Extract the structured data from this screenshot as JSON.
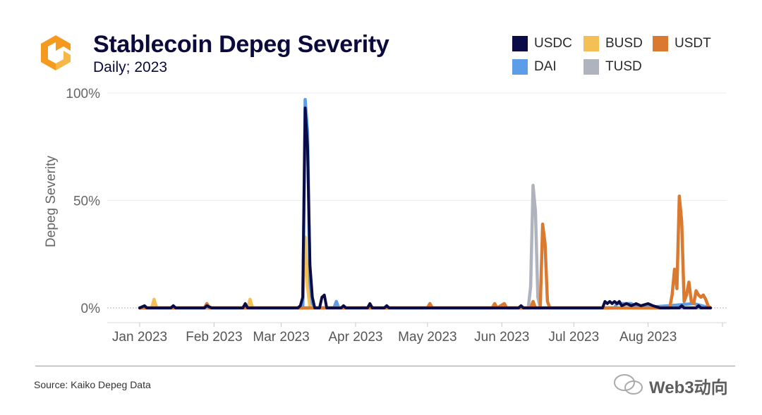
{
  "header": {
    "title": "Stablecoin Depeg Severity",
    "subtitle": "Daily; 2023"
  },
  "legend": [
    {
      "label": "USDC",
      "color": "#0b0c45"
    },
    {
      "label": "BUSD",
      "color": "#f4bf55"
    },
    {
      "label": "USDT",
      "color": "#d97a30"
    },
    {
      "label": "DAI",
      "color": "#5b9de6"
    },
    {
      "label": "TUSD",
      "color": "#aeb3bd"
    }
  ],
  "footer": {
    "source": "Source: Kaiko Depeg Data",
    "watermark": "Web3动向"
  },
  "chart_data": {
    "type": "line",
    "ylabel": "Depeg Severity",
    "xlabel": "",
    "ylim": [
      0,
      100
    ],
    "yticks": [
      "0%",
      "50%",
      "100%"
    ],
    "xticks": [
      "Jan 2023",
      "Feb 2023",
      "Mar 2023",
      "Apr 2023",
      "May 2023",
      "Jun 2023",
      "Jul 2023",
      "Aug 2023"
    ],
    "grid": "horizontal",
    "legend_position": "top-right",
    "series": [
      {
        "name": "BUSD",
        "color": "#f4bf55",
        "points": [
          [
            "2023-01-01",
            0
          ],
          [
            "2023-01-06",
            0
          ],
          [
            "2023-01-07",
            4
          ],
          [
            "2023-01-08",
            0
          ],
          [
            "2023-02-15",
            0
          ],
          [
            "2023-02-16",
            4
          ],
          [
            "2023-02-17",
            0
          ],
          [
            "2023-03-10",
            0
          ],
          [
            "2023-03-11",
            33
          ],
          [
            "2023-03-12",
            10
          ],
          [
            "2023-03-13",
            0
          ],
          [
            "2023-08-27",
            0
          ]
        ]
      },
      {
        "name": "DAI",
        "color": "#5b9de6",
        "points": [
          [
            "2023-01-01",
            0
          ],
          [
            "2023-03-10",
            0
          ],
          [
            "2023-03-11",
            97
          ],
          [
            "2023-03-12",
            82
          ],
          [
            "2023-03-13",
            12
          ],
          [
            "2023-03-14",
            2
          ],
          [
            "2023-03-15",
            0
          ],
          [
            "2023-03-23",
            0
          ],
          [
            "2023-03-24",
            3
          ],
          [
            "2023-03-25",
            0
          ],
          [
            "2023-07-18",
            0
          ],
          [
            "2023-07-19",
            2
          ],
          [
            "2023-07-25",
            2
          ],
          [
            "2023-07-28",
            0
          ],
          [
            "2023-08-10",
            1
          ],
          [
            "2023-08-20",
            2
          ],
          [
            "2023-08-27",
            0
          ]
        ]
      },
      {
        "name": "TUSD",
        "color": "#aeb3bd",
        "points": [
          [
            "2023-01-01",
            0
          ],
          [
            "2023-06-12",
            0
          ],
          [
            "2023-06-13",
            10
          ],
          [
            "2023-06-14",
            57
          ],
          [
            "2023-06-15",
            45
          ],
          [
            "2023-06-16",
            5
          ],
          [
            "2023-06-17",
            0
          ],
          [
            "2023-08-27",
            0
          ]
        ]
      },
      {
        "name": "USDT",
        "color": "#d97a30",
        "points": [
          [
            "2023-01-01",
            0
          ],
          [
            "2023-01-28",
            0
          ],
          [
            "2023-01-29",
            2
          ],
          [
            "2023-01-30",
            0
          ],
          [
            "2023-05-01",
            0
          ],
          [
            "2023-05-02",
            2
          ],
          [
            "2023-05-03",
            0
          ],
          [
            "2023-05-28",
            0
          ],
          [
            "2023-05-29",
            2
          ],
          [
            "2023-05-30",
            0
          ],
          [
            "2023-06-02",
            2
          ],
          [
            "2023-06-03",
            0
          ],
          [
            "2023-06-13",
            0
          ],
          [
            "2023-06-14",
            3
          ],
          [
            "2023-06-15",
            0
          ],
          [
            "2023-06-17",
            0
          ],
          [
            "2023-06-18",
            39
          ],
          [
            "2023-06-19",
            30
          ],
          [
            "2023-06-20",
            3
          ],
          [
            "2023-06-21",
            0
          ],
          [
            "2023-08-10",
            0
          ],
          [
            "2023-08-11",
            6
          ],
          [
            "2023-08-12",
            18
          ],
          [
            "2023-08-13",
            9
          ],
          [
            "2023-08-14",
            52
          ],
          [
            "2023-08-15",
            40
          ],
          [
            "2023-08-16",
            3
          ],
          [
            "2023-08-17",
            6
          ],
          [
            "2023-08-18",
            12
          ],
          [
            "2023-08-19",
            3
          ],
          [
            "2023-08-20",
            2
          ],
          [
            "2023-08-21",
            8
          ],
          [
            "2023-08-22",
            6
          ],
          [
            "2023-08-23",
            5
          ],
          [
            "2023-08-24",
            6
          ],
          [
            "2023-08-25",
            4
          ],
          [
            "2023-08-26",
            1
          ],
          [
            "2023-08-27",
            0
          ]
        ]
      },
      {
        "name": "USDC",
        "color": "#0b0c45",
        "points": [
          [
            "2023-01-01",
            0
          ],
          [
            "2023-01-03",
            1
          ],
          [
            "2023-01-04",
            0
          ],
          [
            "2023-01-14",
            0
          ],
          [
            "2023-01-15",
            1
          ],
          [
            "2023-01-16",
            0
          ],
          [
            "2023-01-28",
            0
          ],
          [
            "2023-01-29",
            1
          ],
          [
            "2023-01-31",
            0
          ],
          [
            "2023-02-13",
            0
          ],
          [
            "2023-02-14",
            2
          ],
          [
            "2023-02-15",
            0
          ],
          [
            "2023-03-08",
            0
          ],
          [
            "2023-03-09",
            1
          ],
          [
            "2023-03-10",
            5
          ],
          [
            "2023-03-11",
            93
          ],
          [
            "2023-03-12",
            75
          ],
          [
            "2023-03-13",
            20
          ],
          [
            "2023-03-14",
            5
          ],
          [
            "2023-03-15",
            0
          ],
          [
            "2023-03-17",
            0
          ],
          [
            "2023-03-18",
            5
          ],
          [
            "2023-03-19",
            6
          ],
          [
            "2023-03-20",
            0
          ],
          [
            "2023-03-26",
            0
          ],
          [
            "2023-03-27",
            1
          ],
          [
            "2023-03-28",
            0
          ],
          [
            "2023-04-06",
            0
          ],
          [
            "2023-04-07",
            2
          ],
          [
            "2023-04-08",
            0
          ],
          [
            "2023-04-13",
            0
          ],
          [
            "2023-04-14",
            1
          ],
          [
            "2023-04-15",
            0
          ],
          [
            "2023-06-08",
            0
          ],
          [
            "2023-06-09",
            1
          ],
          [
            "2023-06-10",
            0
          ],
          [
            "2023-07-13",
            0
          ],
          [
            "2023-07-14",
            3
          ],
          [
            "2023-07-15",
            2
          ],
          [
            "2023-07-16",
            3
          ],
          [
            "2023-07-17",
            2
          ],
          [
            "2023-07-18",
            3
          ],
          [
            "2023-07-19",
            2
          ],
          [
            "2023-07-20",
            3
          ],
          [
            "2023-07-21",
            1
          ],
          [
            "2023-07-23",
            2
          ],
          [
            "2023-07-25",
            1
          ],
          [
            "2023-07-27",
            2
          ],
          [
            "2023-07-29",
            1
          ],
          [
            "2023-08-01",
            2
          ],
          [
            "2023-08-03",
            1
          ],
          [
            "2023-08-06",
            0
          ],
          [
            "2023-08-14",
            0
          ],
          [
            "2023-08-15",
            1
          ],
          [
            "2023-08-16",
            0
          ],
          [
            "2023-08-21",
            0
          ],
          [
            "2023-08-22",
            1
          ],
          [
            "2023-08-23",
            0
          ],
          [
            "2023-08-27",
            0
          ]
        ]
      }
    ]
  }
}
